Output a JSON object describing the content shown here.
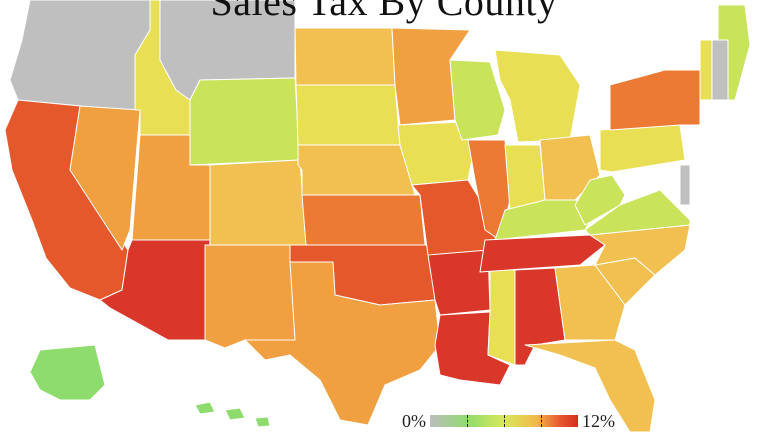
{
  "title": "Sales Tax By County",
  "legend": {
    "min_label": "0%",
    "max_label": "12%"
  },
  "colors": {
    "none": "#bfbfbf",
    "low_green": "#8edc6e",
    "lime": "#c9e35a",
    "yellow": "#e9df55",
    "light_orange": "#f2c050",
    "orange": "#f0a040",
    "deep_orange": "#ec7a35",
    "red_orange": "#e5582c",
    "red": "#d8372a"
  },
  "regions": [
    {
      "name": "oregon-washington",
      "color": "none"
    },
    {
      "name": "montana",
      "color": "none"
    },
    {
      "name": "new-hampshire",
      "color": "none"
    },
    {
      "name": "delaware",
      "color": "none"
    },
    {
      "name": "california",
      "color": "red_orange"
    },
    {
      "name": "arizona",
      "color": "red"
    },
    {
      "name": "nevada",
      "color": "orange"
    },
    {
      "name": "utah",
      "color": "orange"
    },
    {
      "name": "idaho",
      "color": "yellow"
    },
    {
      "name": "wyoming",
      "color": "lime"
    },
    {
      "name": "colorado",
      "color": "light_orange"
    },
    {
      "name": "new-mexico",
      "color": "orange"
    },
    {
      "name": "texas",
      "color": "orange"
    },
    {
      "name": "oklahoma",
      "color": "red_orange"
    },
    {
      "name": "kansas",
      "color": "deep_orange"
    },
    {
      "name": "nebraska",
      "color": "light_orange"
    },
    {
      "name": "south-dakota",
      "color": "yellow"
    },
    {
      "name": "north-dakota",
      "color": "light_orange"
    },
    {
      "name": "minnesota",
      "color": "orange"
    },
    {
      "name": "iowa",
      "color": "yellow"
    },
    {
      "name": "missouri",
      "color": "red_orange"
    },
    {
      "name": "arkansas",
      "color": "red"
    },
    {
      "name": "louisiana",
      "color": "red"
    },
    {
      "name": "mississippi",
      "color": "yellow"
    },
    {
      "name": "alabama",
      "color": "red"
    },
    {
      "name": "tennessee",
      "color": "red"
    },
    {
      "name": "kentucky",
      "color": "lime"
    },
    {
      "name": "illinois",
      "color": "deep_orange"
    },
    {
      "name": "wisconsin",
      "color": "lime"
    },
    {
      "name": "michigan",
      "color": "yellow"
    },
    {
      "name": "indiana",
      "color": "yellow"
    },
    {
      "name": "ohio",
      "color": "light_orange"
    },
    {
      "name": "georgia",
      "color": "light_orange"
    },
    {
      "name": "florida",
      "color": "light_orange"
    },
    {
      "name": "south-carolina",
      "color": "light_orange"
    },
    {
      "name": "north-carolina",
      "color": "light_orange"
    },
    {
      "name": "virginia",
      "color": "lime"
    },
    {
      "name": "west-virginia",
      "color": "lime"
    },
    {
      "name": "pennsylvania",
      "color": "yellow"
    },
    {
      "name": "new-york",
      "color": "deep_orange"
    },
    {
      "name": "maine",
      "color": "lime"
    },
    {
      "name": "vermont",
      "color": "yellow"
    },
    {
      "name": "alaska",
      "color": "low_green"
    },
    {
      "name": "hawaii",
      "color": "low_green"
    }
  ]
}
